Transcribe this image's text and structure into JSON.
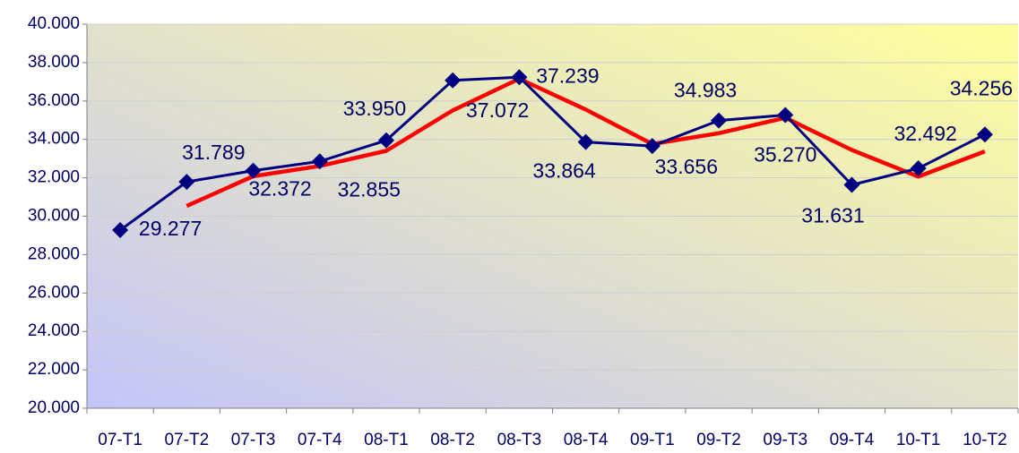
{
  "chart_data": {
    "type": "line",
    "categories": [
      "07-T1",
      "07-T2",
      "07-T3",
      "07-T4",
      "08-T1",
      "08-T2",
      "08-T3",
      "08-T4",
      "09-T1",
      "09-T2",
      "09-T3",
      "09-T4",
      "10-T1",
      "10-T2"
    ],
    "series": [
      {
        "color": "#000080",
        "values": [
          29.277,
          31.789,
          32.372,
          32.855,
          33.95,
          37.072,
          37.239,
          33.864,
          33.656,
          34.983,
          35.27,
          31.631,
          32.492,
          34.256
        ],
        "value_labels": [
          "29.277",
          "31.789",
          "32.372",
          "32.855",
          "33.950",
          "37.072",
          "37.239",
          "33.864",
          "33.656",
          "34.983",
          "35.270",
          "31.631",
          "32.492",
          "34.256"
        ]
      },
      {
        "color": "#ff0000",
        "values": [
          null,
          30.533,
          32.081,
          32.614,
          33.403,
          35.511,
          37.156,
          35.552,
          33.76,
          34.32,
          35.127,
          33.451,
          32.062,
          33.374
        ]
      }
    ],
    "ylim": [
      20,
      40
    ],
    "yticks": [
      {
        "value": 20,
        "label": "20.000"
      },
      {
        "value": 22,
        "label": "22.000"
      },
      {
        "value": 24,
        "label": "24.000"
      },
      {
        "value": 26,
        "label": "26.000"
      },
      {
        "value": 28,
        "label": "28.000"
      },
      {
        "value": 30,
        "label": "30.000"
      },
      {
        "value": 32,
        "label": "32.000"
      },
      {
        "value": 34,
        "label": "34.000"
      },
      {
        "value": 36,
        "label": "36.000"
      },
      {
        "value": 38,
        "label": "38.000"
      },
      {
        "value": 40,
        "label": "40.000"
      }
    ],
    "grid": true
  }
}
